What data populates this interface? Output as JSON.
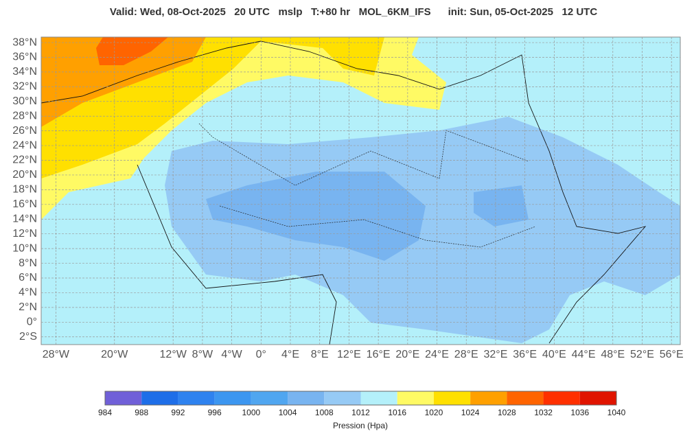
{
  "title": "Valid: Wed, 08-Oct-2025   20 UTC   mslp   T:+80 hr   MOL_6KM_IFS      init: Sun, 05-Oct-2025   12 UTC",
  "map": {
    "lon_lim": [
      -30,
      57.2
    ],
    "lat_lim": [
      -3.05,
      38.75
    ],
    "lat_ticks": [
      {
        "value": 38,
        "label": "38°N"
      },
      {
        "value": 36,
        "label": "36°N"
      },
      {
        "value": 34,
        "label": "34°N"
      },
      {
        "value": 32,
        "label": "32°N"
      },
      {
        "value": 30,
        "label": "30°N"
      },
      {
        "value": 28,
        "label": "28°N"
      },
      {
        "value": 26,
        "label": "26°N"
      },
      {
        "value": 24,
        "label": "24°N"
      },
      {
        "value": 22,
        "label": "22°N"
      },
      {
        "value": 20,
        "label": "20°N"
      },
      {
        "value": 18,
        "label": "18°N"
      },
      {
        "value": 16,
        "label": "16°N"
      },
      {
        "value": 14,
        "label": "14°N"
      },
      {
        "value": 12,
        "label": "12°N"
      },
      {
        "value": 10,
        "label": "10°N"
      },
      {
        "value": 8,
        "label": "8°N"
      },
      {
        "value": 6,
        "label": "6°N"
      },
      {
        "value": 4,
        "label": "4°N"
      },
      {
        "value": 2,
        "label": "2°N"
      },
      {
        "value": 0,
        "label": "0°"
      },
      {
        "value": -2,
        "label": "2°S"
      }
    ],
    "lon_ticks": [
      {
        "value": -28,
        "label": "28°W"
      },
      {
        "value": -20,
        "label": "20°W"
      },
      {
        "value": -12,
        "label": "12°W"
      },
      {
        "value": -8,
        "label": "8°W"
      },
      {
        "value": -4,
        "label": "4°W"
      },
      {
        "value": 0,
        "label": "0°"
      },
      {
        "value": 4,
        "label": "4°E"
      },
      {
        "value": 8,
        "label": "8°E"
      },
      {
        "value": 12,
        "label": "12°E"
      },
      {
        "value": 16,
        "label": "16°E"
      },
      {
        "value": 20,
        "label": "20°E"
      },
      {
        "value": 24,
        "label": "24°E"
      },
      {
        "value": 28,
        "label": "28°E"
      },
      {
        "value": 32,
        "label": "32°E"
      },
      {
        "value": 36,
        "label": "36°E"
      },
      {
        "value": 40,
        "label": "40°E"
      },
      {
        "value": 44,
        "label": "44°E"
      },
      {
        "value": 48,
        "label": "48°E"
      },
      {
        "value": 52,
        "label": "52°E"
      },
      {
        "value": 56,
        "label": "56°E"
      }
    ]
  },
  "colorbar": {
    "label": "Pression (Hpa)",
    "levels": [
      984,
      988,
      992,
      996,
      1000,
      1004,
      1008,
      1012,
      1016,
      1020,
      1024,
      1028,
      1032,
      1036,
      1040
    ],
    "colors": [
      "#7060d8",
      "#1e6ee8",
      "#2e82ef",
      "#3c96f0",
      "#50a6f0",
      "#78b4f0",
      "#96caf5",
      "#b4f0fa",
      "#fffa64",
      "#ffe000",
      "#ffa000",
      "#ff6400",
      "#ff3000",
      "#e01400"
    ]
  }
}
